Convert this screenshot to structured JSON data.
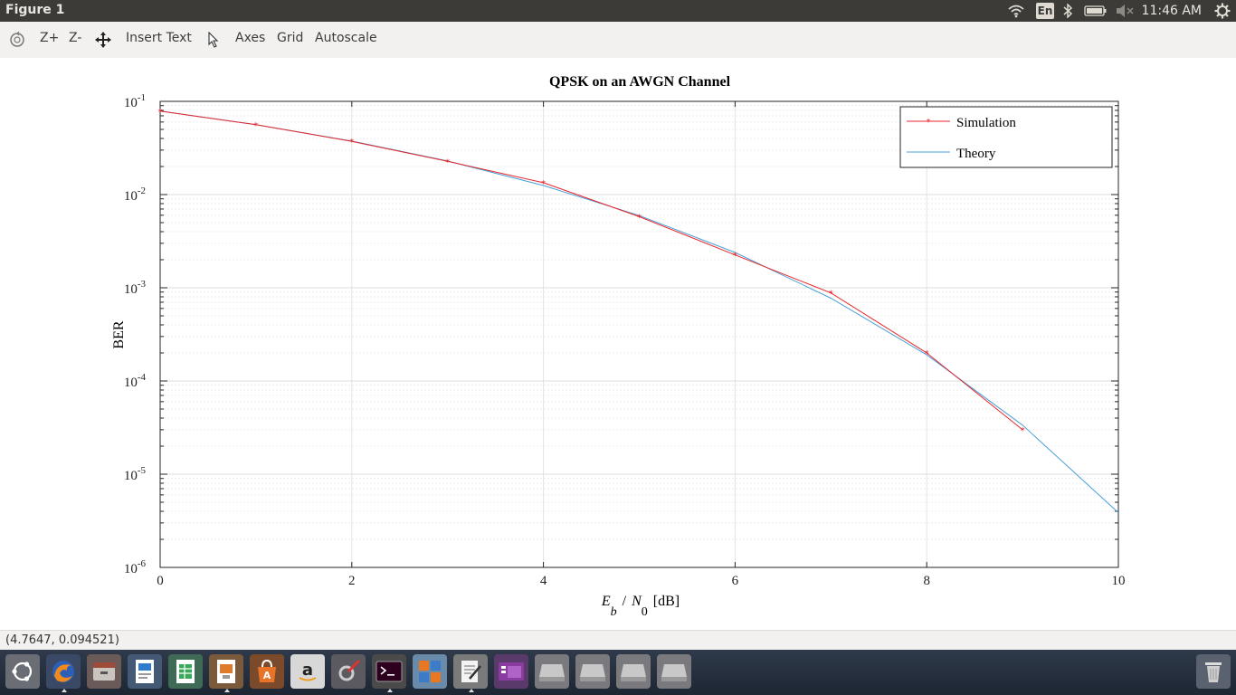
{
  "window": {
    "title": "Figure 1"
  },
  "top_panel": {
    "keyboard_layout": "En",
    "clock": "11:46 AM",
    "icons": [
      "wifi-icon",
      "keyboard-layout-icon",
      "bluetooth-icon",
      "battery-icon",
      "volume-muted-icon",
      "settings-gear-icon"
    ]
  },
  "toolbar": {
    "zoom_in": "Z+",
    "zoom_out": "Z-",
    "insert_text": "Insert Text",
    "axes": "Axes",
    "grid": "Grid",
    "autoscale": "Autoscale"
  },
  "status": {
    "coordinates": "(4.7647, 0.094521)"
  },
  "chart_data": {
    "type": "line",
    "title": "QPSK on an AWGN Channel",
    "xlabel": "E_b / N_0 [dB]",
    "xlabel_parts": {
      "e": "E",
      "e_sub": "b",
      "slash": "/",
      "n": "N",
      "n_sub": "0",
      "unit": "[dB]"
    },
    "ylabel": "BER",
    "xlim": [
      0,
      10
    ],
    "ylim": [
      1e-06,
      0.1
    ],
    "yscale": "log",
    "grid": true,
    "legend_position": "top-right",
    "x_ticks": [
      "0",
      "2",
      "4",
      "6",
      "8",
      "10"
    ],
    "y_ticks": [
      {
        "base": "10",
        "exp": "-1"
      },
      {
        "base": "10",
        "exp": "-2"
      },
      {
        "base": "10",
        "exp": "-3"
      },
      {
        "base": "10",
        "exp": "-4"
      },
      {
        "base": "10",
        "exp": "-5"
      },
      {
        "base": "10",
        "exp": "-6"
      }
    ],
    "series": [
      {
        "name": "Simulation",
        "color": "#e8262b",
        "marker": "star",
        "x": [
          0,
          1,
          2,
          3,
          4,
          5,
          6,
          7,
          8,
          9
        ],
        "y": [
          0.0785,
          0.0562,
          0.0372,
          0.0227,
          0.0134,
          0.0058,
          0.00225,
          0.00088,
          0.0002,
          3e-05
        ]
      },
      {
        "name": "Theory",
        "color": "#4a9fd8",
        "marker": "none",
        "x": [
          0,
          1,
          2,
          3,
          4,
          5,
          6,
          7,
          8,
          9,
          10
        ],
        "y": [
          0.0786,
          0.0563,
          0.0375,
          0.0229,
          0.0125,
          0.00595,
          0.00239,
          0.000773,
          0.000191,
          3.36e-05,
          3.87e-06
        ]
      }
    ]
  }
}
